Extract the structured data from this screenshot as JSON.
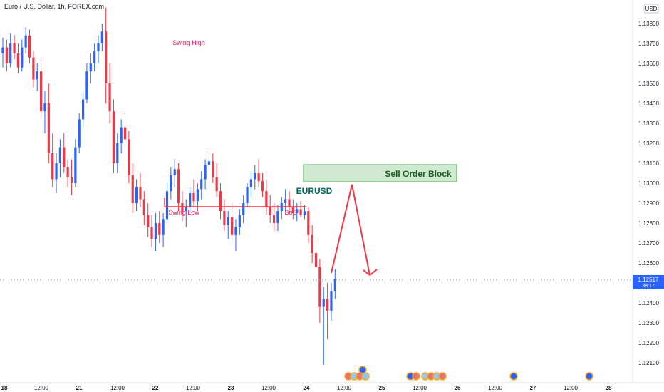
{
  "header": {
    "symbol_title": "Euro / U.S. Dollar, 1h, FOREX.com"
  },
  "price_axis": {
    "currency_label": "USD",
    "current_price": "1.12517",
    "countdown": "38:17",
    "tick_labels": [
      "1.13800",
      "1.13700",
      "1.13600",
      "1.13500",
      "1.13400",
      "1.13300",
      "1.13200",
      "1.13100",
      "1.13000",
      "1.12900",
      "1.12800",
      "1.12700",
      "1.12600",
      "1.12500",
      "1.12400",
      "1.12300",
      "1.12200",
      "1.12100"
    ]
  },
  "time_axis": {
    "tick_labels": [
      "18",
      "12:00",
      "21",
      "12:00",
      "22",
      "12:00",
      "23",
      "12:00",
      "24",
      "12:00",
      "25",
      "12:00",
      "26",
      "12:00",
      "27",
      "12:00",
      "28"
    ]
  },
  "annotations": {
    "swing_high": "Swing High",
    "swing_low": "Swing Low",
    "bos": "BoS",
    "symbol": "EURUSD",
    "order_block": "Sell Order Block"
  },
  "colors": {
    "up": "#2962ff",
    "down": "#f23645",
    "accent": "#e91e63",
    "zone_fill": "#c8e6c9",
    "zone_border": "#4caf50",
    "arrow": "#f23645",
    "price_tag": "#2962ff"
  },
  "chart_data": {
    "type": "candlestick",
    "title": "Euro / U.S. Dollar, 1h, FOREX.com",
    "y_unit": "USD",
    "ylim": [
      1.1205,
      1.1392
    ],
    "grid": false,
    "last_price": 1.12517,
    "sell_order_block": {
      "from": 1.13015,
      "to": 1.13095
    },
    "swing_low_level": 1.12885,
    "candles": [
      [
        1.1365,
        1.1373,
        1.1358,
        1.1368
      ],
      [
        1.1368,
        1.1372,
        1.1356,
        1.136
      ],
      [
        1.136,
        1.1375,
        1.1358,
        1.137
      ],
      [
        1.137,
        1.1374,
        1.1362,
        1.1365
      ],
      [
        1.1365,
        1.137,
        1.1355,
        1.1358
      ],
      [
        1.1358,
        1.1372,
        1.1356,
        1.1368
      ],
      [
        1.1368,
        1.1378,
        1.1365,
        1.1374
      ],
      [
        1.1374,
        1.1377,
        1.136,
        1.1363
      ],
      [
        1.1363,
        1.1366,
        1.1348,
        1.1352
      ],
      [
        1.1352,
        1.136,
        1.1346,
        1.1356
      ],
      [
        1.1356,
        1.1362,
        1.1332,
        1.1336
      ],
      [
        1.1336,
        1.1346,
        1.1325,
        1.134
      ],
      [
        1.134,
        1.135,
        1.131,
        1.1315
      ],
      [
        1.1315,
        1.1325,
        1.1298,
        1.1302
      ],
      [
        1.1302,
        1.1315,
        1.1295,
        1.131
      ],
      [
        1.131,
        1.1322,
        1.1303,
        1.1318
      ],
      [
        1.1318,
        1.1325,
        1.1305,
        1.1308
      ],
      [
        1.1308,
        1.1312,
        1.1298,
        1.1303
      ],
      [
        1.1303,
        1.1312,
        1.1294,
        1.13
      ],
      [
        1.13,
        1.1322,
        1.1298,
        1.1318
      ],
      [
        1.1318,
        1.1335,
        1.1315,
        1.1332
      ],
      [
        1.1332,
        1.1345,
        1.1328,
        1.1342
      ],
      [
        1.1342,
        1.136,
        1.134,
        1.1356
      ],
      [
        1.1356,
        1.1365,
        1.135,
        1.136
      ],
      [
        1.136,
        1.137,
        1.1356,
        1.1366
      ],
      [
        1.1366,
        1.1374,
        1.136,
        1.137
      ],
      [
        1.137,
        1.138,
        1.1366,
        1.1376
      ],
      [
        1.1376,
        1.1388,
        1.134,
        1.135
      ],
      [
        1.135,
        1.136,
        1.133,
        1.1336
      ],
      [
        1.1336,
        1.1342,
        1.1305,
        1.131
      ],
      [
        1.131,
        1.1325,
        1.1305,
        1.132
      ],
      [
        1.132,
        1.1332,
        1.1315,
        1.1328
      ],
      [
        1.1328,
        1.1335,
        1.1318,
        1.1322
      ],
      [
        1.1322,
        1.1326,
        1.13,
        1.1304
      ],
      [
        1.1304,
        1.131,
        1.1285,
        1.129
      ],
      [
        1.129,
        1.1302,
        1.1286,
        1.1298
      ],
      [
        1.1298,
        1.1305,
        1.1288,
        1.1292
      ],
      [
        1.1292,
        1.1296,
        1.1279,
        1.1284
      ],
      [
        1.1284,
        1.129,
        1.1273,
        1.1278
      ],
      [
        1.1278,
        1.1284,
        1.1268,
        1.1272
      ],
      [
        1.1272,
        1.1285,
        1.1266,
        1.128
      ],
      [
        1.128,
        1.1286,
        1.127,
        1.1274
      ],
      [
        1.1274,
        1.1285,
        1.1268,
        1.1282
      ],
      [
        1.1282,
        1.13,
        1.128,
        1.1296
      ],
      [
        1.1296,
        1.1308,
        1.1292,
        1.1304
      ],
      [
        1.1304,
        1.1312,
        1.1298,
        1.1307
      ],
      [
        1.1307,
        1.131,
        1.1286,
        1.129
      ],
      [
        1.129,
        1.1296,
        1.1281,
        1.1286
      ],
      [
        1.1286,
        1.1292,
        1.1278,
        1.1288
      ],
      [
        1.1288,
        1.1298,
        1.1285,
        1.1295
      ],
      [
        1.1295,
        1.1302,
        1.1288,
        1.1291
      ],
      [
        1.1291,
        1.13,
        1.1286,
        1.1297
      ],
      [
        1.1297,
        1.1306,
        1.1292,
        1.1302
      ],
      [
        1.1302,
        1.1312,
        1.1297,
        1.1309
      ],
      [
        1.1309,
        1.1316,
        1.1304,
        1.1311
      ],
      [
        1.1311,
        1.1315,
        1.13,
        1.1303
      ],
      [
        1.1303,
        1.131,
        1.1293,
        1.1296
      ],
      [
        1.1296,
        1.13,
        1.1282,
        1.1286
      ],
      [
        1.1286,
        1.1292,
        1.1276,
        1.1279
      ],
      [
        1.1279,
        1.1286,
        1.1272,
        1.1283
      ],
      [
        1.1283,
        1.129,
        1.1271,
        1.1274
      ],
      [
        1.1274,
        1.1282,
        1.1266,
        1.1278
      ],
      [
        1.1278,
        1.1287,
        1.1274,
        1.1284
      ],
      [
        1.1284,
        1.1294,
        1.128,
        1.129
      ],
      [
        1.129,
        1.13,
        1.1288,
        1.1298
      ],
      [
        1.1298,
        1.1306,
        1.1293,
        1.1302
      ],
      [
        1.1302,
        1.1309,
        1.1297,
        1.1305
      ],
      [
        1.1305,
        1.1312,
        1.1298,
        1.1301
      ],
      [
        1.1301,
        1.1305,
        1.1293,
        1.1296
      ],
      [
        1.1296,
        1.1302,
        1.1284,
        1.1288
      ],
      [
        1.1288,
        1.1294,
        1.128,
        1.1284
      ],
      [
        1.1284,
        1.129,
        1.1276,
        1.128
      ],
      [
        1.128,
        1.1289,
        1.1276,
        1.1286
      ],
      [
        1.1286,
        1.1293,
        1.1282,
        1.129
      ],
      [
        1.129,
        1.1297,
        1.1286,
        1.1292
      ],
      [
        1.1292,
        1.1296,
        1.1285,
        1.1288
      ],
      [
        1.1288,
        1.1292,
        1.1282,
        1.1285
      ],
      [
        1.1285,
        1.129,
        1.1281,
        1.1287
      ],
      [
        1.1287,
        1.1291,
        1.1283,
        1.1284
      ],
      [
        1.1284,
        1.1289,
        1.1282,
        1.1286
      ],
      [
        1.1286,
        1.1288,
        1.127,
        1.1274
      ],
      [
        1.1274,
        1.1279,
        1.126,
        1.1265
      ],
      [
        1.1265,
        1.127,
        1.125,
        1.1258
      ],
      [
        1.1258,
        1.1262,
        1.123,
        1.1238
      ],
      [
        1.1238,
        1.1248,
        1.1209,
        1.1242
      ],
      [
        1.1242,
        1.125,
        1.1222,
        1.1236
      ],
      [
        1.1236,
        1.125,
        1.1231,
        1.1246
      ],
      [
        1.1246,
        1.1257,
        1.1242,
        1.1252
      ]
    ]
  }
}
